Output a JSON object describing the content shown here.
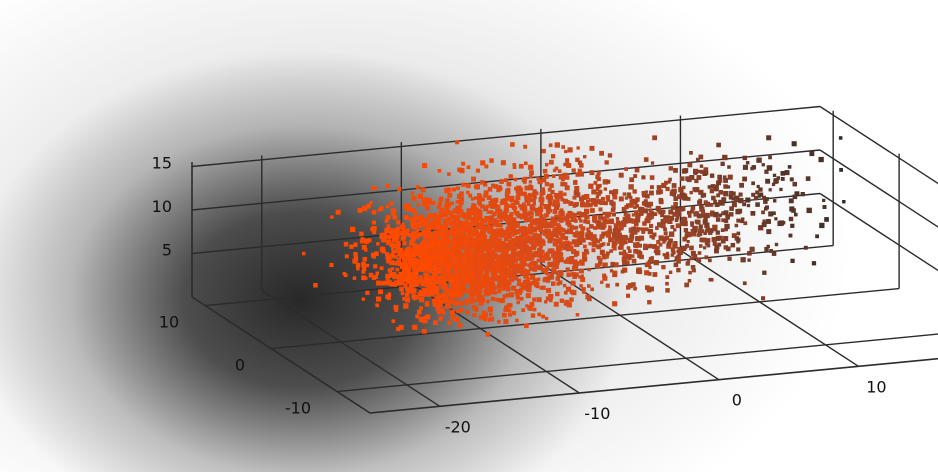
{
  "chart_data": {
    "type": "scatter",
    "title": "",
    "xlabel": "",
    "ylabel": "",
    "zlabel": "",
    "grid": true,
    "x_ticks": [
      "-20",
      "-10",
      "0",
      "10"
    ],
    "y_ticks": [
      "-10",
      "0",
      "10"
    ],
    "z_ticks": [
      "5",
      "10",
      "15"
    ],
    "xlim": [
      -25,
      20
    ],
    "ylim": [
      -15,
      12
    ],
    "zlim": [
      0,
      15
    ],
    "colormap": [
      "#ff4a00",
      "#d64a1a",
      "#8a4028",
      "#2a2a2a"
    ],
    "clusters": [
      {
        "x": -11,
        "y": 3,
        "z": 7,
        "count": 1400
      },
      {
        "x": -6,
        "y": 4,
        "z": 5,
        "count": 600
      },
      {
        "x": -3,
        "y": 6,
        "z": 9,
        "count": 450
      },
      {
        "x": 2,
        "y": 5,
        "z": 7,
        "count": 350
      },
      {
        "x": 7,
        "y": 6,
        "z": 6,
        "count": 250
      },
      {
        "x": 12,
        "y": 7,
        "z": 8,
        "count": 180
      }
    ]
  }
}
